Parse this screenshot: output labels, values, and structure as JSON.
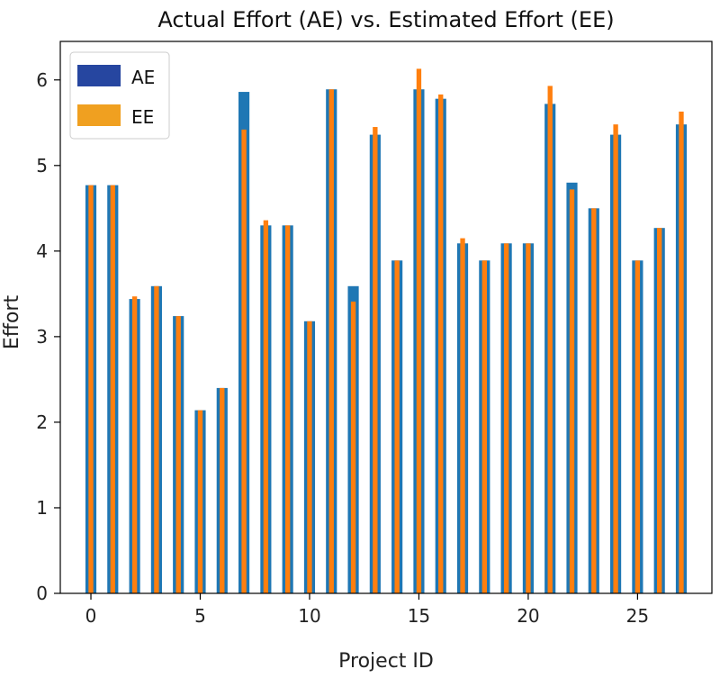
{
  "chart_data": {
    "type": "bar",
    "title": "Actual Effort (AE) vs. Estimated Effort (EE)",
    "xlabel": "Project ID",
    "ylabel": "Effort",
    "xlim": [
      -1.4,
      28.4
    ],
    "ylim": [
      0,
      6.45
    ],
    "xticks": [
      0,
      5,
      10,
      15,
      20,
      25
    ],
    "yticks": [
      0,
      1,
      2,
      3,
      4,
      5,
      6
    ],
    "legend_position": "top-left",
    "x": [
      0,
      1,
      2,
      3,
      4,
      5,
      6,
      7,
      8,
      9,
      10,
      11,
      12,
      13,
      14,
      15,
      16,
      17,
      18,
      19,
      20,
      21,
      22,
      23,
      24,
      25,
      26,
      27
    ],
    "series": [
      {
        "name": "AE",
        "color": "#1f77b4",
        "legend_color": "#2646a0",
        "values": [
          4.77,
          4.77,
          3.44,
          3.59,
          3.24,
          2.14,
          2.4,
          5.86,
          4.3,
          4.3,
          3.18,
          5.89,
          3.59,
          5.36,
          3.89,
          5.89,
          5.78,
          4.09,
          3.89,
          4.09,
          4.09,
          5.72,
          4.8,
          4.5,
          5.36,
          3.89,
          4.27,
          5.48
        ]
      },
      {
        "name": "EE",
        "color": "#ff7f0e",
        "legend_color": "#f0a020",
        "values": [
          4.77,
          4.77,
          3.47,
          3.59,
          3.24,
          2.14,
          2.4,
          5.42,
          4.36,
          4.3,
          3.18,
          5.89,
          3.41,
          5.45,
          3.89,
          6.13,
          5.83,
          4.15,
          3.89,
          4.09,
          4.09,
          5.93,
          4.72,
          4.5,
          5.48,
          3.89,
          4.27,
          5.63
        ]
      }
    ]
  }
}
